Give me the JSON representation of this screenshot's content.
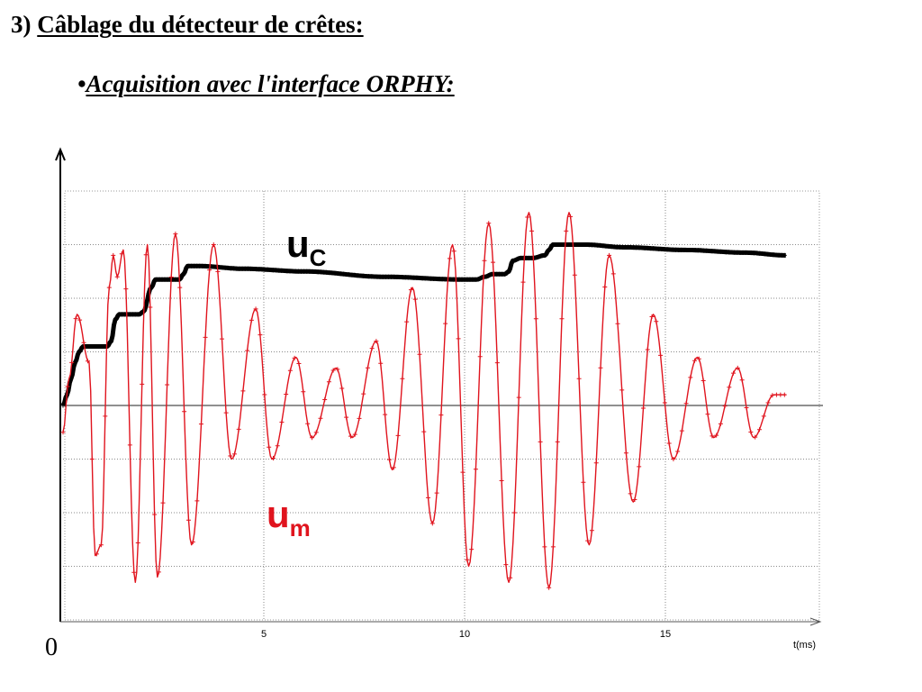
{
  "heading": {
    "number": "3)",
    "text": "Câblage du détecteur de crêtes:"
  },
  "subheading": {
    "bullet": "•",
    "text": "Acquisition avec l'interface ORPHY:"
  },
  "chart_data": {
    "type": "line",
    "xlabel": "t(ms)",
    "ylabel": "",
    "x_ticks": [
      5,
      10,
      15
    ],
    "xlim": [
      0,
      19
    ],
    "ylim": [
      -4,
      4
    ],
    "origin_label": "0",
    "grid": true,
    "series": [
      {
        "name": "u",
        "sub": "C",
        "color": "#000000",
        "label_color": "#000000",
        "marker": "+",
        "x": [
          0.0,
          0.1,
          0.2,
          0.3,
          0.4,
          0.5,
          0.6,
          0.7,
          0.8,
          0.9,
          1.0,
          1.1,
          1.2,
          1.3,
          1.4,
          1.5,
          1.6,
          1.7,
          1.8,
          1.9,
          2.0,
          2.2,
          2.3,
          2.4,
          2.5,
          2.6,
          2.8,
          2.9,
          3.0,
          3.1,
          3.2,
          3.3,
          3.4,
          4.5,
          6.0,
          8.0,
          9.9,
          10.1,
          10.3,
          10.5,
          10.7,
          10.9,
          11.0,
          11.1,
          11.2,
          11.4,
          11.7,
          12.0,
          12.1,
          12.2,
          12.3,
          12.5,
          13.0,
          14.0,
          15.5,
          17.0,
          18.0
        ],
        "y": [
          0.0,
          0.2,
          0.5,
          0.8,
          1.0,
          1.1,
          1.1,
          1.1,
          1.1,
          1.1,
          1.1,
          1.1,
          1.2,
          1.6,
          1.7,
          1.7,
          1.7,
          1.7,
          1.7,
          1.7,
          1.75,
          2.2,
          2.35,
          2.35,
          2.35,
          2.35,
          2.35,
          2.35,
          2.45,
          2.6,
          2.6,
          2.6,
          2.6,
          2.55,
          2.5,
          2.4,
          2.35,
          2.35,
          2.35,
          2.4,
          2.45,
          2.45,
          2.45,
          2.5,
          2.7,
          2.75,
          2.75,
          2.8,
          2.9,
          3.0,
          3.0,
          3.0,
          3.0,
          2.95,
          2.9,
          2.85,
          2.8
        ]
      },
      {
        "name": "u",
        "sub": "m",
        "color": "#e0141e",
        "label_color": "#e0141e",
        "marker": "+",
        "x": [
          0.0,
          0.15,
          0.35,
          0.65,
          0.8,
          0.95,
          1.15,
          1.25,
          1.35,
          1.5,
          1.8,
          2.1,
          2.35,
          2.8,
          3.2,
          3.75,
          4.2,
          4.8,
          5.2,
          5.8,
          6.2,
          6.8,
          7.2,
          7.8,
          8.2,
          8.7,
          9.2,
          9.7,
          10.1,
          10.6,
          11.1,
          11.6,
          12.1,
          12.6,
          13.1,
          13.6,
          14.2,
          14.7,
          15.2,
          15.8,
          16.2,
          16.8,
          17.2,
          17.7,
          18.0
        ],
        "y": [
          -0.5,
          0.5,
          1.7,
          0.8,
          -2.8,
          -2.6,
          2.2,
          2.8,
          2.4,
          2.9,
          -3.3,
          3.0,
          -3.2,
          3.2,
          -2.6,
          3.0,
          -1.0,
          1.8,
          -1.0,
          0.9,
          -0.6,
          0.7,
          -0.6,
          1.2,
          -1.2,
          2.2,
          -2.2,
          3.0,
          -3.0,
          3.4,
          -3.3,
          3.6,
          -3.4,
          3.6,
          -2.6,
          2.8,
          -1.8,
          1.7,
          -1.0,
          0.9,
          -0.6,
          0.7,
          -0.6,
          0.2,
          0.2
        ]
      }
    ]
  }
}
